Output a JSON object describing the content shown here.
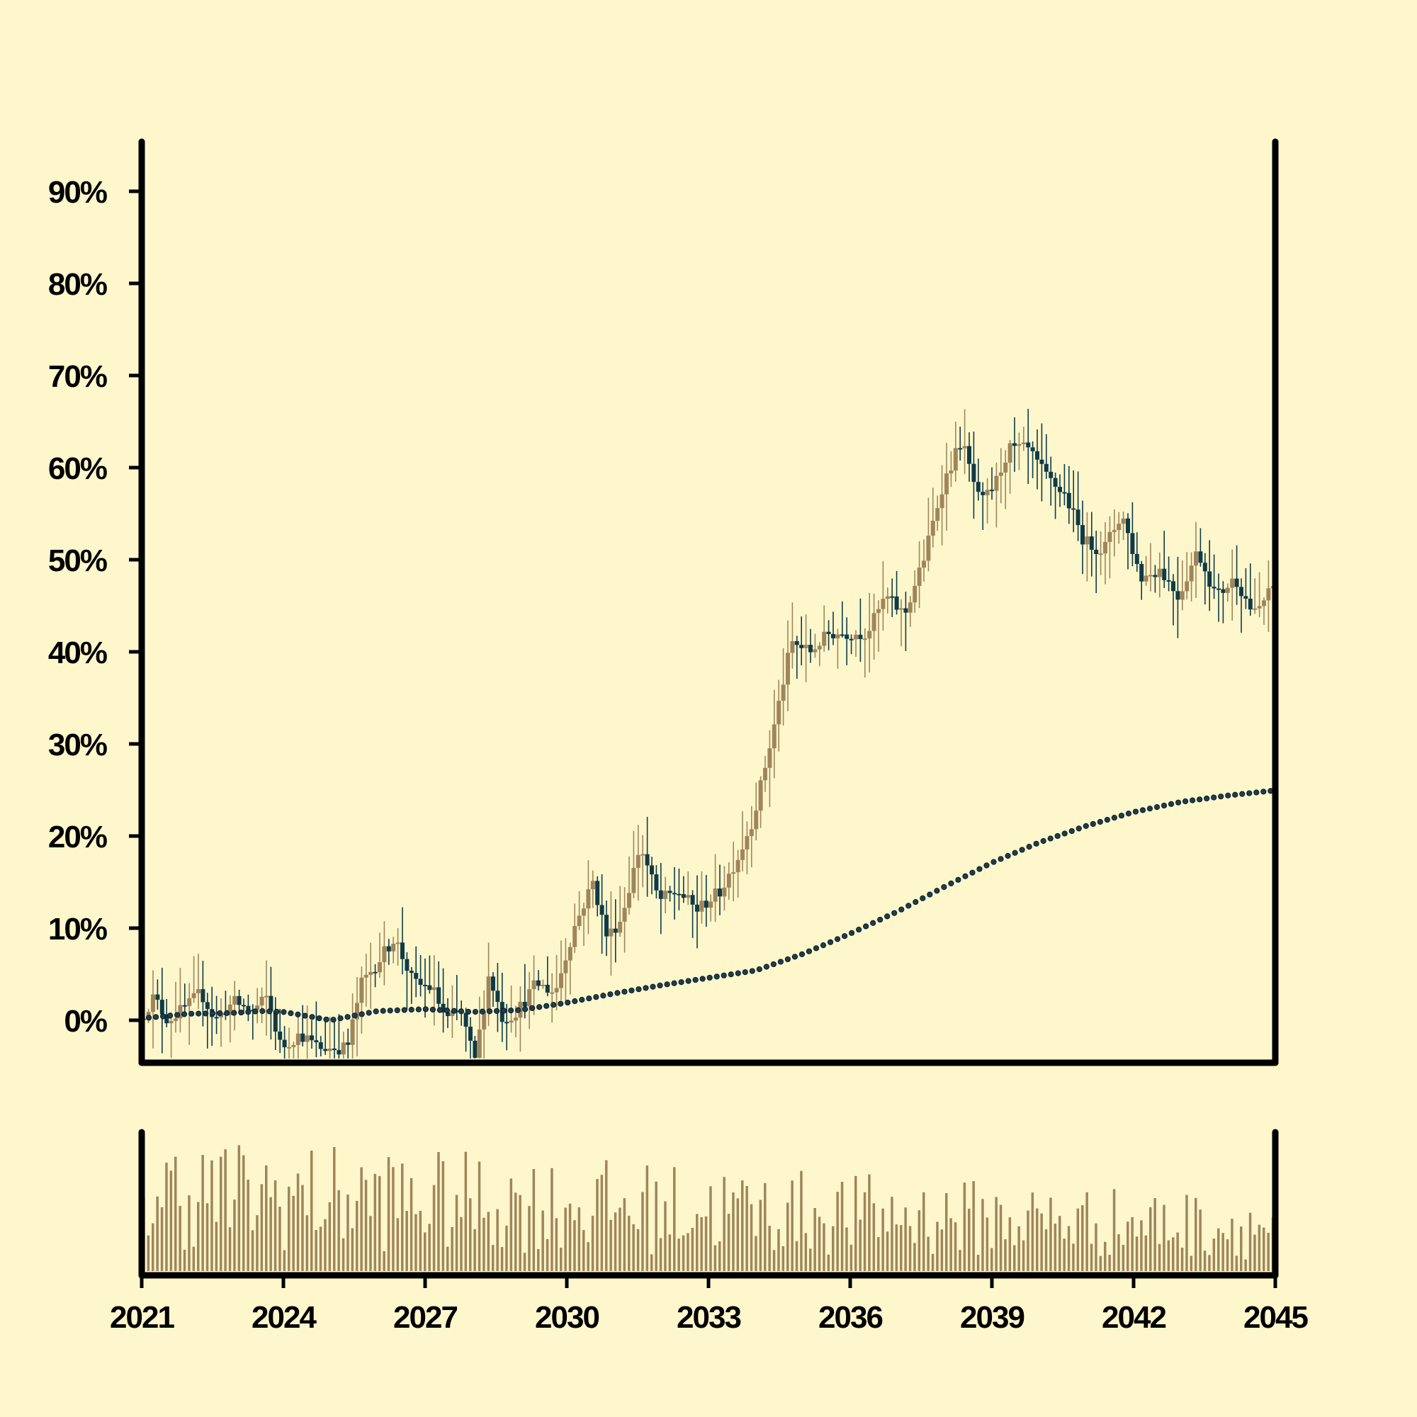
{
  "chart_data": {
    "type": "candlestick",
    "title": "",
    "xlabel": "",
    "ylabel": "",
    "x_range": [
      2021,
      2045
    ],
    "x_ticks": [
      "2021",
      "2024",
      "2027",
      "2030",
      "2033",
      "2036",
      "2039",
      "2042",
      "2045"
    ],
    "y_range_percent": [
      -4.5,
      95
    ],
    "y_ticks": [
      "0%",
      "10%",
      "20%",
      "30%",
      "40%",
      "50%",
      "60%",
      "70%",
      "80%",
      "90%"
    ],
    "grid": false,
    "legend": "none",
    "colors": {
      "background": "#FFF7CC",
      "up_candle": "#A0855B",
      "down_candle": "#0F3B47",
      "moving_average": "#1D3E50",
      "volume": "#A0855B",
      "axis": "#000000"
    },
    "close_path_percent": [
      [
        2021.0,
        0
      ],
      [
        2021.3,
        2.5
      ],
      [
        2021.6,
        0
      ],
      [
        2022.0,
        1.5
      ],
      [
        2022.3,
        3
      ],
      [
        2022.6,
        0
      ],
      [
        2023.0,
        2
      ],
      [
        2023.4,
        1
      ],
      [
        2023.7,
        2.5
      ],
      [
        2024.0,
        -3
      ],
      [
        2024.4,
        -1.5
      ],
      [
        2024.8,
        -3
      ],
      [
        2025.4,
        -3
      ],
      [
        2025.7,
        4
      ],
      [
        2026.0,
        6
      ],
      [
        2026.4,
        9
      ],
      [
        2026.8,
        4
      ],
      [
        2027.2,
        3.5
      ],
      [
        2027.5,
        0
      ],
      [
        2027.8,
        1
      ],
      [
        2028.1,
        -4.5
      ],
      [
        2028.4,
        5
      ],
      [
        2028.7,
        0
      ],
      [
        2029.0,
        1
      ],
      [
        2029.4,
        4
      ],
      [
        2029.8,
        3
      ],
      [
        2030.2,
        10
      ],
      [
        2030.6,
        15
      ],
      [
        2030.9,
        9
      ],
      [
        2031.2,
        11
      ],
      [
        2031.6,
        19
      ],
      [
        2032.0,
        13
      ],
      [
        2032.4,
        14
      ],
      [
        2032.8,
        12
      ],
      [
        2033.3,
        14
      ],
      [
        2033.7,
        18
      ],
      [
        2034.0,
        22
      ],
      [
        2034.4,
        31
      ],
      [
        2034.8,
        41
      ],
      [
        2035.2,
        40
      ],
      [
        2035.6,
        42
      ],
      [
        2036.0,
        42
      ],
      [
        2036.4,
        42
      ],
      [
        2036.8,
        46
      ],
      [
        2037.2,
        44
      ],
      [
        2037.6,
        50
      ],
      [
        2038.0,
        58
      ],
      [
        2038.4,
        63
      ],
      [
        2038.8,
        56
      ],
      [
        2039.1,
        58
      ],
      [
        2039.4,
        62
      ],
      [
        2039.8,
        62
      ],
      [
        2040.2,
        59
      ],
      [
        2040.6,
        57
      ],
      [
        2041.0,
        52
      ],
      [
        2041.4,
        51
      ],
      [
        2041.8,
        55
      ],
      [
        2042.2,
        48
      ],
      [
        2042.6,
        49
      ],
      [
        2043.0,
        46
      ],
      [
        2043.4,
        51
      ],
      [
        2043.8,
        46
      ],
      [
        2044.2,
        48
      ],
      [
        2044.6,
        44
      ],
      [
        2045.0,
        47
      ]
    ],
    "moving_average_percent": [
      [
        2021.0,
        0.2
      ],
      [
        2022.0,
        0.7
      ],
      [
        2023.0,
        0.8
      ],
      [
        2023.5,
        1.0
      ],
      [
        2024.0,
        0.9
      ],
      [
        2025.0,
        0
      ],
      [
        2026.0,
        1.0
      ],
      [
        2027.0,
        1.2
      ],
      [
        2028.0,
        0.9
      ],
      [
        2029.0,
        1.1
      ],
      [
        2030.0,
        1.9
      ],
      [
        2031.0,
        2.9
      ],
      [
        2032.0,
        3.8
      ],
      [
        2033.0,
        4.6
      ],
      [
        2034.0,
        5.4
      ],
      [
        2035.0,
        7.2
      ],
      [
        2036.0,
        9.4
      ],
      [
        2037.0,
        11.8
      ],
      [
        2038.0,
        14.5
      ],
      [
        2039.0,
        17.1
      ],
      [
        2040.0,
        19.3
      ],
      [
        2041.0,
        21.1
      ],
      [
        2042.0,
        22.6
      ],
      [
        2043.0,
        23.7
      ],
      [
        2044.0,
        24.4
      ],
      [
        2044.9,
        24.9
      ]
    ],
    "volume_relative_range": [
      0.05,
      1.0
    ]
  }
}
